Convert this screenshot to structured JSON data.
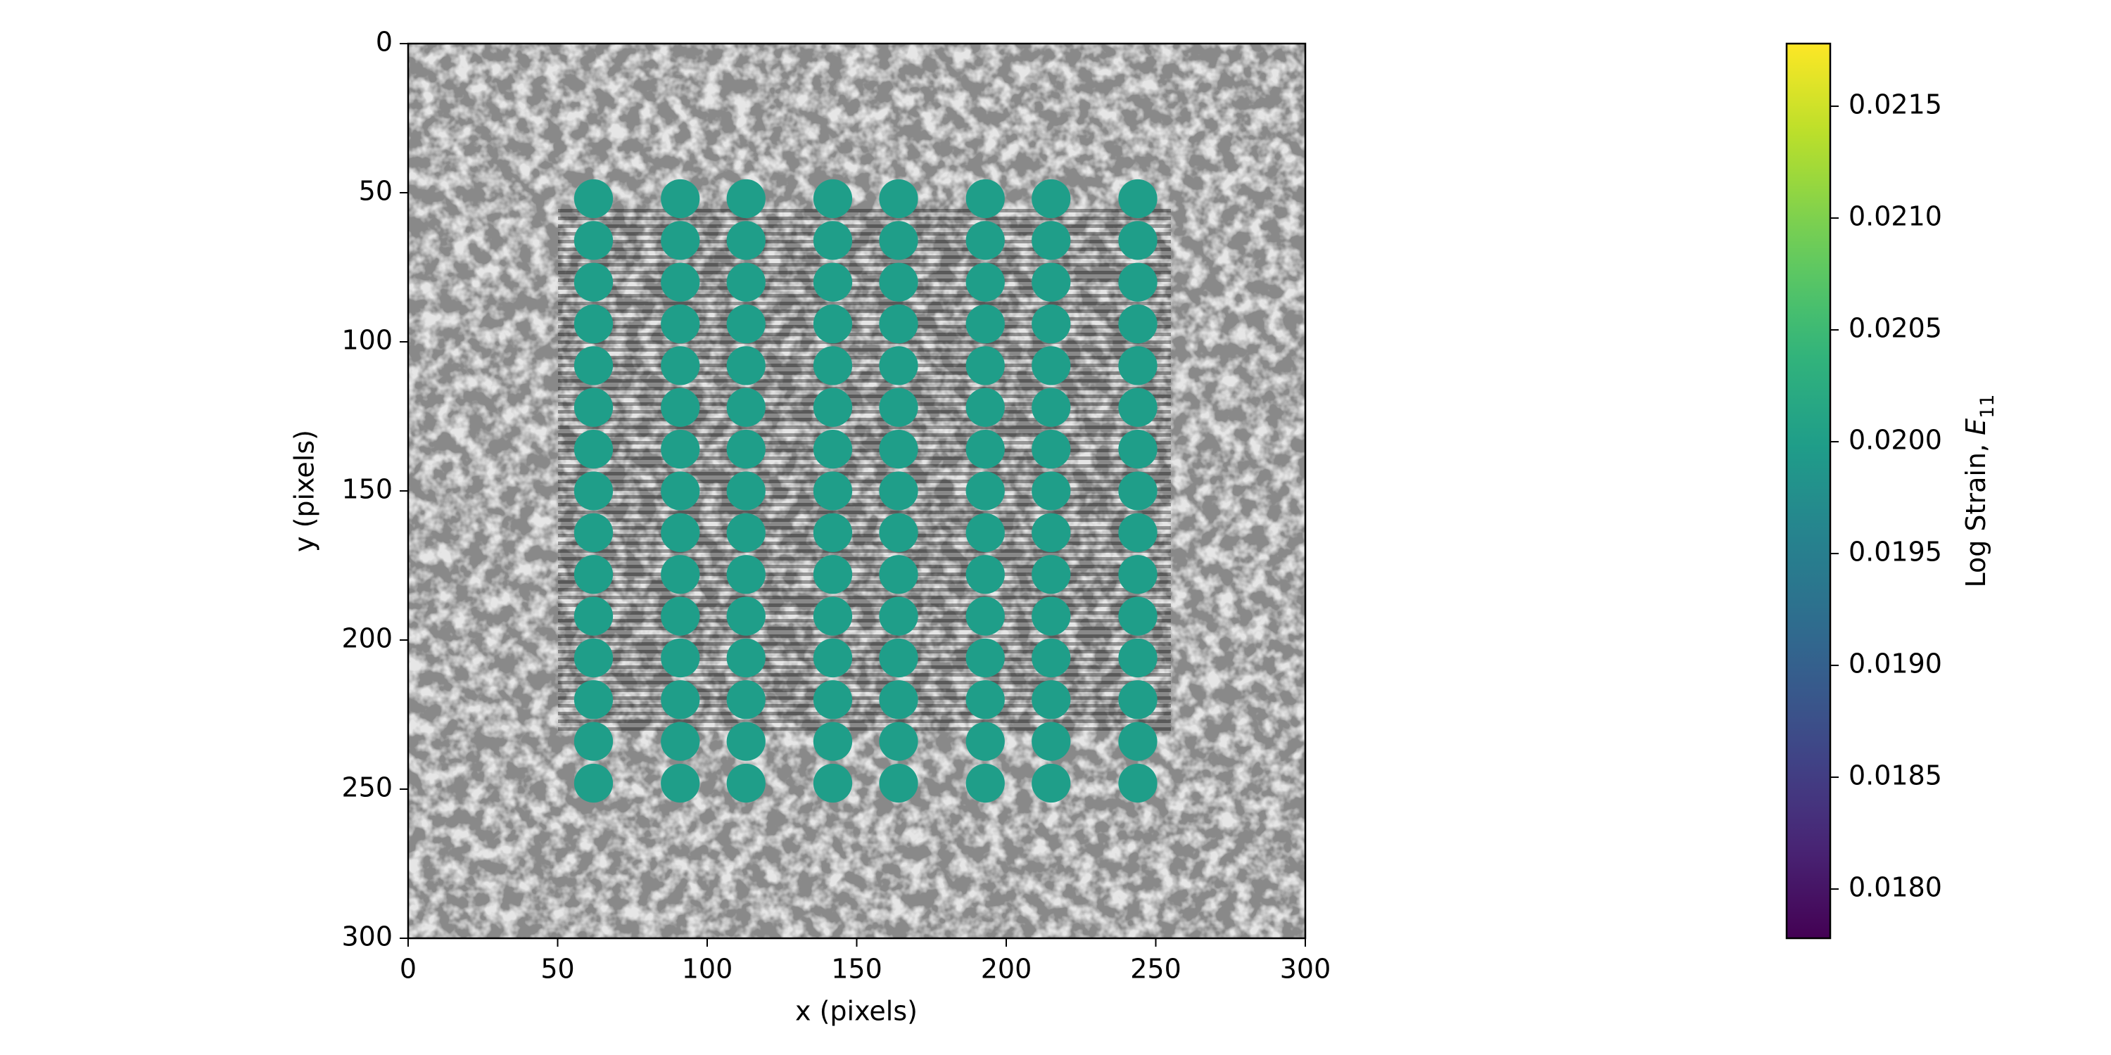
{
  "chart_data": {
    "type": "scatter",
    "xlabel": "x (pixels)",
    "ylabel": "y (pixels)",
    "xlim": [
      0,
      300
    ],
    "ylim": [
      300,
      0
    ],
    "xticks": [
      0,
      50,
      100,
      150,
      200,
      250,
      300
    ],
    "yticks": [
      0,
      50,
      100,
      150,
      200,
      250,
      300
    ],
    "series": [
      {
        "x": 62,
        "y": [
          52,
          66,
          80,
          94,
          108,
          122,
          136,
          150,
          164,
          178,
          192,
          206,
          220,
          234,
          248
        ],
        "value": 0.02
      },
      {
        "x": 91,
        "y": [
          52,
          66,
          80,
          94,
          108,
          122,
          136,
          150,
          164,
          178,
          192,
          206,
          220,
          234,
          248
        ],
        "value": 0.02
      },
      {
        "x": 113,
        "y": [
          52,
          66,
          80,
          94,
          108,
          122,
          136,
          150,
          164,
          178,
          192,
          206,
          220,
          234,
          248
        ],
        "value": 0.02
      },
      {
        "x": 142,
        "y": [
          52,
          66,
          80,
          94,
          108,
          122,
          136,
          150,
          164,
          178,
          192,
          206,
          220,
          234,
          248
        ],
        "value": 0.02
      },
      {
        "x": 164,
        "y": [
          52,
          66,
          80,
          94,
          108,
          122,
          136,
          150,
          164,
          178,
          192,
          206,
          220,
          234,
          248
        ],
        "value": 0.02
      },
      {
        "x": 193,
        "y": [
          52,
          66,
          80,
          94,
          108,
          122,
          136,
          150,
          164,
          178,
          192,
          206,
          220,
          234,
          248
        ],
        "value": 0.02
      },
      {
        "x": 215,
        "y": [
          52,
          66,
          80,
          94,
          108,
          122,
          136,
          150,
          164,
          178,
          192,
          206,
          220,
          234,
          248
        ],
        "value": 0.02
      },
      {
        "x": 244,
        "y": [
          52,
          66,
          80,
          94,
          108,
          122,
          136,
          150,
          164,
          178,
          192,
          206,
          220,
          234,
          248
        ],
        "value": 0.02
      }
    ],
    "colorbar": {
      "cmap": "viridis",
      "label": {
        "text": "Log Strain, ",
        "symbol": "E",
        "subscript": "11"
      },
      "clim": [
        0.01778,
        0.02178
      ],
      "ticks": [
        {
          "value": 0.018,
          "label": "0.0180"
        },
        {
          "value": 0.0185,
          "label": "0.0185"
        },
        {
          "value": 0.019,
          "label": "0.0190"
        },
        {
          "value": 0.0195,
          "label": "0.0195"
        },
        {
          "value": 0.02,
          "label": "0.0200"
        },
        {
          "value": 0.0205,
          "label": "0.0205"
        },
        {
          "value": 0.021,
          "label": "0.0210"
        },
        {
          "value": 0.0215,
          "label": "0.0215"
        }
      ]
    }
  }
}
